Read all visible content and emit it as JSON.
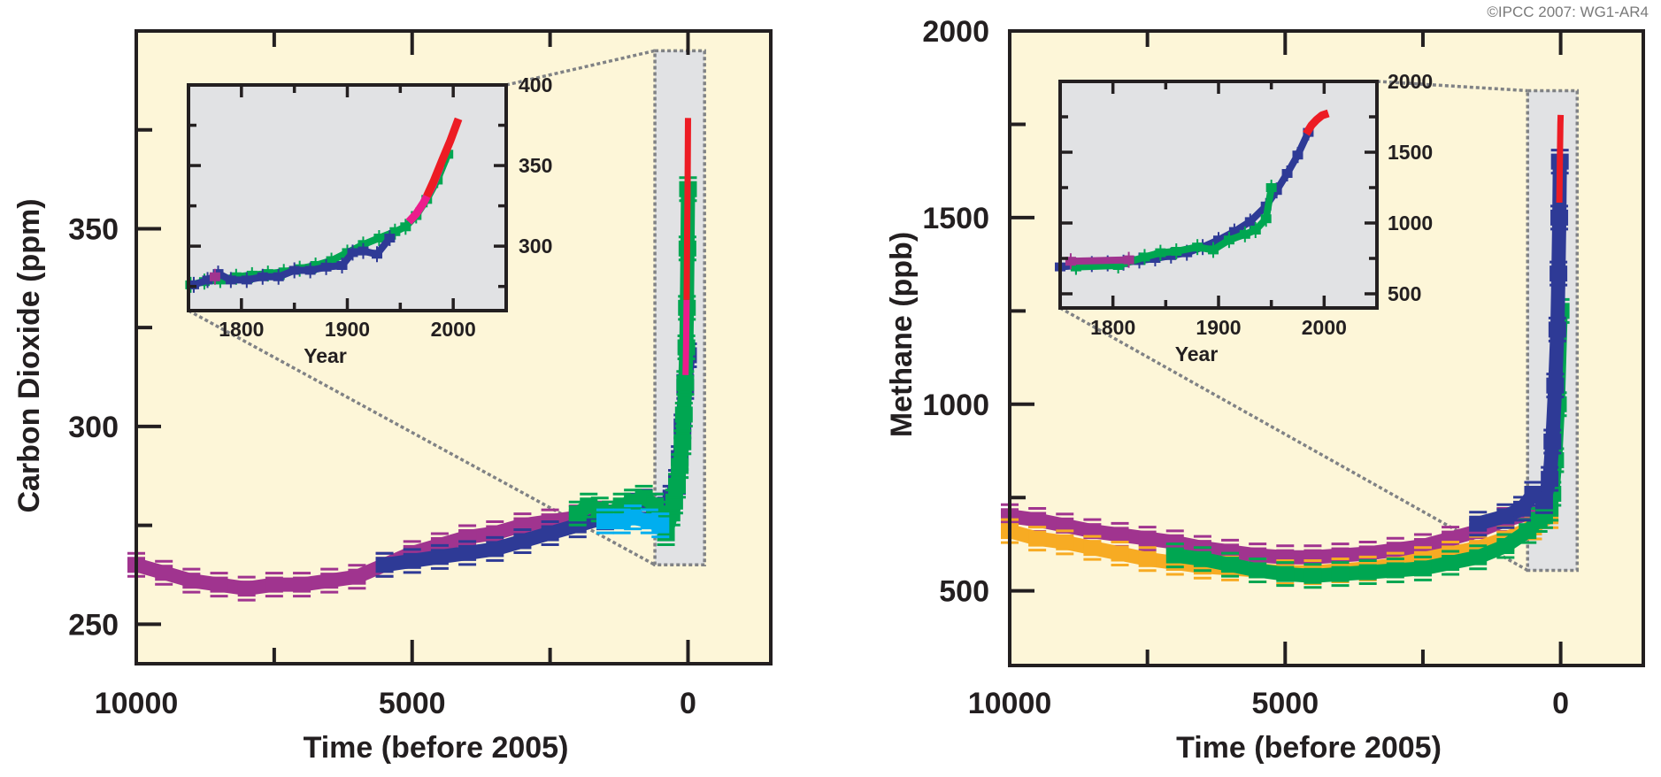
{
  "credit": "©IPCC  2007: WG1-AR4",
  "colors": {
    "panel_bg": "#fdf6d8",
    "inset_bg": "#e1e2e4",
    "frame": "#231f20",
    "dotted": "#808285",
    "purple": "#a0348f",
    "blue": "#2e3a96",
    "green": "#00a651",
    "cyan": "#00aeef",
    "red": "#ed1c24",
    "magenta": "#ec1c8c",
    "orange": "#f7ab23"
  },
  "chart_data": [
    {
      "id": "co2",
      "type": "scatter",
      "title": "",
      "ylabel": "Carbon Dioxide (ppm)",
      "xlabel": "Time (before 2005)",
      "xlim": [
        10000,
        -1500
      ],
      "ylim": [
        240,
        400
      ],
      "xticks_major": [
        10000,
        5000,
        0
      ],
      "xticks_minor": [
        7500,
        2500
      ],
      "yticks_major": [
        250,
        300,
        350
      ],
      "yticks_minor": [
        275,
        325,
        375
      ],
      "xtick_labels": [
        "10000",
        "5000",
        "0"
      ],
      "ytick_labels": [
        "250",
        "300",
        "350"
      ],
      "highlight_range": {
        "x": [
          600,
          -300
        ],
        "y": [
          265,
          395
        ]
      },
      "series": [
        {
          "name": "ice-core-purple",
          "color_key": "purple",
          "x": [
            10000,
            9500,
            9000,
            8500,
            8000,
            7500,
            7000,
            6500,
            6000,
            5500,
            5000,
            4500,
            4000,
            3500,
            3000,
            2500,
            2000,
            1500,
            1000
          ],
          "y": [
            265,
            263,
            261,
            260,
            259,
            260,
            260,
            261,
            262,
            265,
            268,
            270,
            272,
            273,
            275,
            276,
            277,
            278,
            279
          ]
        },
        {
          "name": "ice-core-blue",
          "color_key": "blue",
          "x": [
            5500,
            5000,
            4500,
            4000,
            3500,
            3000,
            2500,
            2000,
            1500,
            1200,
            1000,
            800,
            600,
            400,
            300,
            200,
            150,
            100,
            50,
            0
          ],
          "y": [
            265,
            266,
            267,
            268,
            269,
            271,
            273,
            275,
            277,
            278,
            280,
            281,
            280,
            279,
            282,
            286,
            292,
            300,
            310,
            318
          ]
        },
        {
          "name": "ice-core-green",
          "color_key": "green",
          "x": [
            2000,
            1800,
            1600,
            1400,
            1200,
            1000,
            800,
            600,
            400,
            300,
            250,
            200,
            150,
            100,
            75,
            50,
            30,
            20,
            10,
            0
          ],
          "y": [
            278,
            280,
            279,
            278,
            280,
            281,
            282,
            280,
            273,
            278,
            281,
            285,
            290,
            296,
            303,
            311,
            320,
            330,
            345,
            360
          ]
        },
        {
          "name": "ice-core-cyan",
          "color_key": "cyan",
          "x": [
            1500,
            1200,
            1000,
            700,
            500
          ],
          "y": [
            276,
            276,
            277,
            276,
            275
          ]
        },
        {
          "name": "atmospheric-magenta",
          "color_key": "magenta",
          "x": [
            45,
            40,
            35,
            30,
            25
          ],
          "y": [
            313,
            316,
            320,
            326,
            332
          ]
        },
        {
          "name": "atmospheric-red",
          "color_key": "red",
          "x": [
            25,
            20,
            15,
            10,
            5,
            0
          ],
          "y": [
            332,
            340,
            348,
            357,
            367,
            378
          ]
        }
      ],
      "inset": {
        "xlabel": "Year",
        "xlim": [
          1750,
          2050
        ],
        "ylim": [
          260,
          400
        ],
        "xtick_labels": [
          "1800",
          "1900",
          "2000"
        ],
        "xticks_major": [
          1800,
          1900,
          2000
        ],
        "xticks_minor": [
          1850,
          1950
        ],
        "ytick_labels": [
          "300",
          "350",
          "400"
        ],
        "yticks_major": [
          300,
          350,
          400
        ],
        "yticks_minor": [
          275,
          325,
          375
        ],
        "series": [
          {
            "name": "inset-green",
            "color_key": "green",
            "x": [
              1752,
              1765,
              1780,
              1795,
              1810,
              1825,
              1840,
              1855,
              1870,
              1885,
              1900,
              1915,
              1930,
              1945,
              1955,
              1965,
              1975,
              1985,
              1995
            ],
            "y": [
              276,
              278,
              279,
              281,
              282,
              283,
              284,
              286,
              288,
              291,
              296,
              301,
              305,
              309,
              312,
              319,
              329,
              341,
              357
            ]
          },
          {
            "name": "inset-blue",
            "color_key": "blue",
            "x": [
              1755,
              1768,
              1778,
              1790,
              1805,
              1820,
              1835,
              1850,
              1865,
              1880,
              1895,
              1905,
              1915,
              1928,
              1940
            ],
            "y": [
              276,
              279,
              283,
              279,
              279,
              281,
              281,
              285,
              285,
              287,
              288,
              296,
              297,
              295,
              305
            ]
          },
          {
            "name": "inset-purple",
            "color_key": "purple",
            "x": [
              1775
            ],
            "y": [
              281
            ]
          },
          {
            "name": "inset-magenta",
            "color_key": "magenta",
            "x": [
              1958,
              1965,
              1972,
              1980,
              1988
            ],
            "y": [
              315,
              320,
              327,
              337,
              350
            ]
          },
          {
            "name": "inset-red",
            "color_key": "red",
            "x": [
              1975,
              1982,
              1990,
              1997,
              2005
            ],
            "y": [
              331,
              341,
              354,
              365,
              379
            ]
          }
        ]
      }
    },
    {
      "id": "ch4",
      "type": "scatter",
      "title": "",
      "ylabel": "Methane (ppb)",
      "xlabel": "Time (before 2005)",
      "xlim": [
        10000,
        -1500
      ],
      "ylim": [
        300,
        2000
      ],
      "xticks_major": [
        10000,
        5000,
        0
      ],
      "xticks_minor": [
        7500,
        2500
      ],
      "yticks_major": [
        500,
        1000,
        1500,
        2000
      ],
      "yticks_minor": [
        750,
        1250,
        1750
      ],
      "xtick_labels": [
        "10000",
        "5000",
        "0"
      ],
      "ytick_labels": [
        "500",
        "1000",
        "1500",
        "2000"
      ],
      "highlight_range": {
        "x": [
          600,
          -300
        ],
        "y": [
          555,
          1840
        ]
      },
      "series": [
        {
          "name": "ice-core-purple",
          "color_key": "purple",
          "x": [
            10000,
            9500,
            9000,
            8500,
            8000,
            7500,
            7000,
            6500,
            6000,
            5500,
            5000,
            4500,
            4000,
            3500,
            3000,
            2500,
            2000,
            1500,
            1000,
            500
          ],
          "y": [
            700,
            690,
            675,
            660,
            650,
            640,
            630,
            615,
            605,
            595,
            590,
            590,
            595,
            600,
            610,
            620,
            640,
            660,
            690,
            710
          ]
        },
        {
          "name": "ice-core-orange",
          "color_key": "orange",
          "x": [
            10000,
            9500,
            9000,
            8500,
            8000,
            7500,
            7000,
            6500,
            6000,
            5500,
            5000,
            4500,
            4000,
            3500,
            3000,
            2500,
            2000,
            1500,
            1000,
            500,
            200
          ],
          "y": [
            660,
            640,
            630,
            615,
            600,
            585,
            575,
            565,
            560,
            555,
            550,
            550,
            555,
            560,
            570,
            585,
            600,
            615,
            640,
            670,
            700
          ]
        },
        {
          "name": "ice-core-green",
          "color_key": "green",
          "x": [
            7000,
            6500,
            6000,
            5500,
            5000,
            4500,
            4000,
            3500,
            3000,
            2500,
            2000,
            1500,
            1000,
            600,
            400,
            300,
            200,
            150,
            100,
            50,
            0
          ],
          "y": [
            595,
            585,
            570,
            555,
            545,
            540,
            545,
            550,
            555,
            560,
            575,
            590,
            620,
            660,
            690,
            700,
            720,
            760,
            850,
            1000,
            1250
          ]
        },
        {
          "name": "ice-core-blue",
          "color_key": "blue",
          "x": [
            1500,
            1000,
            700,
            500,
            300,
            200,
            150,
            100,
            60,
            40,
            25,
            15
          ],
          "y": [
            680,
            700,
            720,
            760,
            740,
            800,
            900,
            1050,
            1200,
            1350,
            1500,
            1650
          ]
        },
        {
          "name": "atmospheric-red",
          "color_key": "red",
          "x": [
            25,
            15,
            5,
            0
          ],
          "y": [
            1540,
            1650,
            1750,
            1775
          ]
        }
      ],
      "inset": {
        "xlabel": "Year",
        "xlim": [
          1750,
          2050
        ],
        "ylim": [
          400,
          2000
        ],
        "xtick_labels": [
          "1800",
          "1900",
          "2000"
        ],
        "xticks_major": [
          1800,
          1900,
          2000
        ],
        "xticks_minor": [
          1850,
          1950
        ],
        "ytick_labels": [
          "500",
          "1000",
          "1500",
          "2000"
        ],
        "yticks_major": [
          500,
          1000,
          1500,
          2000
        ],
        "yticks_minor": [
          750,
          1250,
          1750
        ],
        "series": [
          {
            "name": "inset-blue",
            "color_key": "blue",
            "x": [
              1750,
              1765,
              1780,
              1795,
              1810,
              1825,
              1840,
              1855,
              1870,
              1885,
              1900,
              1915,
              1930,
              1945,
              1955,
              1965,
              1975,
              1985
            ],
            "y": [
              690,
              700,
              710,
              715,
              720,
              735,
              750,
              770,
              790,
              830,
              880,
              940,
              1010,
              1120,
              1230,
              1350,
              1480,
              1640
            ]
          },
          {
            "name": "inset-green",
            "color_key": "green",
            "x": [
              1765,
              1805,
              1830,
              1845,
              1860,
              1880,
              1895,
              1910,
              1925,
              1935,
              1945,
              1950
            ],
            "y": [
              690,
              700,
              760,
              790,
              800,
              830,
              810,
              880,
              920,
              950,
              1030,
              1250
            ]
          },
          {
            "name": "inset-purple",
            "color_key": "purple",
            "x": [
              1760,
              1815
            ],
            "y": [
              730,
              740
            ]
          },
          {
            "name": "inset-red",
            "color_key": "red",
            "x": [
              1983,
              1988,
              1993,
              1998,
              2004
            ],
            "y": [
              1630,
              1690,
              1730,
              1760,
              1775
            ]
          }
        ]
      }
    }
  ]
}
